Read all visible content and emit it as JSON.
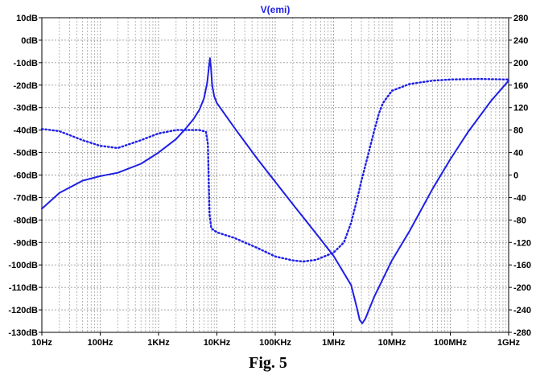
{
  "caption": "Fig. 5",
  "chart_data": {
    "type": "line",
    "title": "V(emi)",
    "x_scale": "log",
    "xlim": [
      10,
      1000000000
    ],
    "x_ticks": [
      {
        "value": 10,
        "label": "10Hz"
      },
      {
        "value": 100,
        "label": "100Hz"
      },
      {
        "value": 1000,
        "label": "1KHz"
      },
      {
        "value": 10000,
        "label": "10KHz"
      },
      {
        "value": 100000,
        "label": "100KHz"
      },
      {
        "value": 1000000,
        "label": "1MHz"
      },
      {
        "value": 10000000,
        "label": "10MHz"
      },
      {
        "value": 100000000,
        "label": "100MHz"
      },
      {
        "value": 1000000000,
        "label": "1GHz"
      }
    ],
    "y_left": {
      "lim": [
        -130,
        10
      ],
      "ticks": [
        {
          "value": 10,
          "label": "10dB"
        },
        {
          "value": 0,
          "label": "0dB"
        },
        {
          "value": -10,
          "label": "-10dB"
        },
        {
          "value": -20,
          "label": "-20dB"
        },
        {
          "value": -30,
          "label": "-30dB"
        },
        {
          "value": -40,
          "label": "-40dB"
        },
        {
          "value": -50,
          "label": "-50dB"
        },
        {
          "value": -60,
          "label": "-60dB"
        },
        {
          "value": -70,
          "label": "-70dB"
        },
        {
          "value": -80,
          "label": "-80dB"
        },
        {
          "value": -90,
          "label": "-90dB"
        },
        {
          "value": -100,
          "label": "-100dB"
        },
        {
          "value": -110,
          "label": "-110dB"
        },
        {
          "value": -120,
          "label": "-120dB"
        },
        {
          "value": -130,
          "label": "-130dB"
        }
      ]
    },
    "y_right": {
      "lim": [
        -280,
        280
      ],
      "ticks": [
        {
          "value": 280,
          "label": "280"
        },
        {
          "value": 240,
          "label": "240"
        },
        {
          "value": 200,
          "label": "200"
        },
        {
          "value": 160,
          "label": "160"
        },
        {
          "value": 120,
          "label": "120"
        },
        {
          "value": 80,
          "label": "80"
        },
        {
          "value": 40,
          "label": "40"
        },
        {
          "value": 0,
          "label": "0"
        },
        {
          "value": -40,
          "label": "-40"
        },
        {
          "value": -80,
          "label": "-80"
        },
        {
          "value": -120,
          "label": "-120"
        },
        {
          "value": -160,
          "label": "-160"
        },
        {
          "value": -200,
          "label": "-200"
        },
        {
          "value": -240,
          "label": "-240"
        },
        {
          "value": -280,
          "label": "-280"
        }
      ]
    },
    "grid": true,
    "colors": {
      "series": "#1f1fe6",
      "grid": "#9a9a9a",
      "frame": "#000000"
    },
    "series": [
      {
        "axis": "left",
        "style": "solid",
        "points": [
          [
            10,
            -75
          ],
          [
            20,
            -68
          ],
          [
            50,
            -62.5
          ],
          [
            100,
            -60.5
          ],
          [
            200,
            -59
          ],
          [
            500,
            -55
          ],
          [
            1000,
            -50
          ],
          [
            2000,
            -44
          ],
          [
            3000,
            -39
          ],
          [
            4000,
            -35
          ],
          [
            5000,
            -31
          ],
          [
            6000,
            -26
          ],
          [
            6800,
            -19
          ],
          [
            7300,
            -12
          ],
          [
            7600,
            -8
          ],
          [
            7900,
            -12
          ],
          [
            8300,
            -20
          ],
          [
            9000,
            -25
          ],
          [
            10000,
            -28
          ],
          [
            20000,
            -39
          ],
          [
            50000,
            -53
          ],
          [
            100000,
            -63
          ],
          [
            200000,
            -73
          ],
          [
            500000,
            -86
          ],
          [
            1000000,
            -96
          ],
          [
            2000000,
            -109
          ],
          [
            2500000,
            -119
          ],
          [
            2800000,
            -124.5
          ],
          [
            3100000,
            -126
          ],
          [
            3500000,
            -124
          ],
          [
            5000000,
            -114
          ],
          [
            10000000,
            -98
          ],
          [
            20000000,
            -85
          ],
          [
            50000000,
            -66
          ],
          [
            100000000,
            -53
          ],
          [
            200000000,
            -41
          ],
          [
            500000000,
            -27
          ],
          [
            1000000000,
            -18
          ]
        ]
      },
      {
        "axis": "right",
        "style": "dotted",
        "points": [
          [
            10,
            82
          ],
          [
            20,
            78
          ],
          [
            50,
            62
          ],
          [
            100,
            52
          ],
          [
            200,
            48
          ],
          [
            500,
            62
          ],
          [
            1000,
            74
          ],
          [
            2000,
            80
          ],
          [
            5000,
            80
          ],
          [
            6500,
            77
          ],
          [
            7000,
            55
          ],
          [
            7200,
            0
          ],
          [
            7500,
            -70
          ],
          [
            8000,
            -95
          ],
          [
            10000,
            -102
          ],
          [
            20000,
            -112
          ],
          [
            50000,
            -130
          ],
          [
            100000,
            -145
          ],
          [
            200000,
            -152
          ],
          [
            300000,
            -154
          ],
          [
            500000,
            -151
          ],
          [
            1000000,
            -138
          ],
          [
            1500000,
            -120
          ],
          [
            2000000,
            -85
          ],
          [
            2500000,
            -45
          ],
          [
            3000000,
            -10
          ],
          [
            4000000,
            40
          ],
          [
            5000000,
            80
          ],
          [
            6000000,
            110
          ],
          [
            7000000,
            128
          ],
          [
            10000000,
            150
          ],
          [
            20000000,
            162
          ],
          [
            50000000,
            168
          ],
          [
            100000000,
            170
          ],
          [
            300000000,
            171
          ],
          [
            1000000000,
            170
          ]
        ]
      }
    ]
  }
}
